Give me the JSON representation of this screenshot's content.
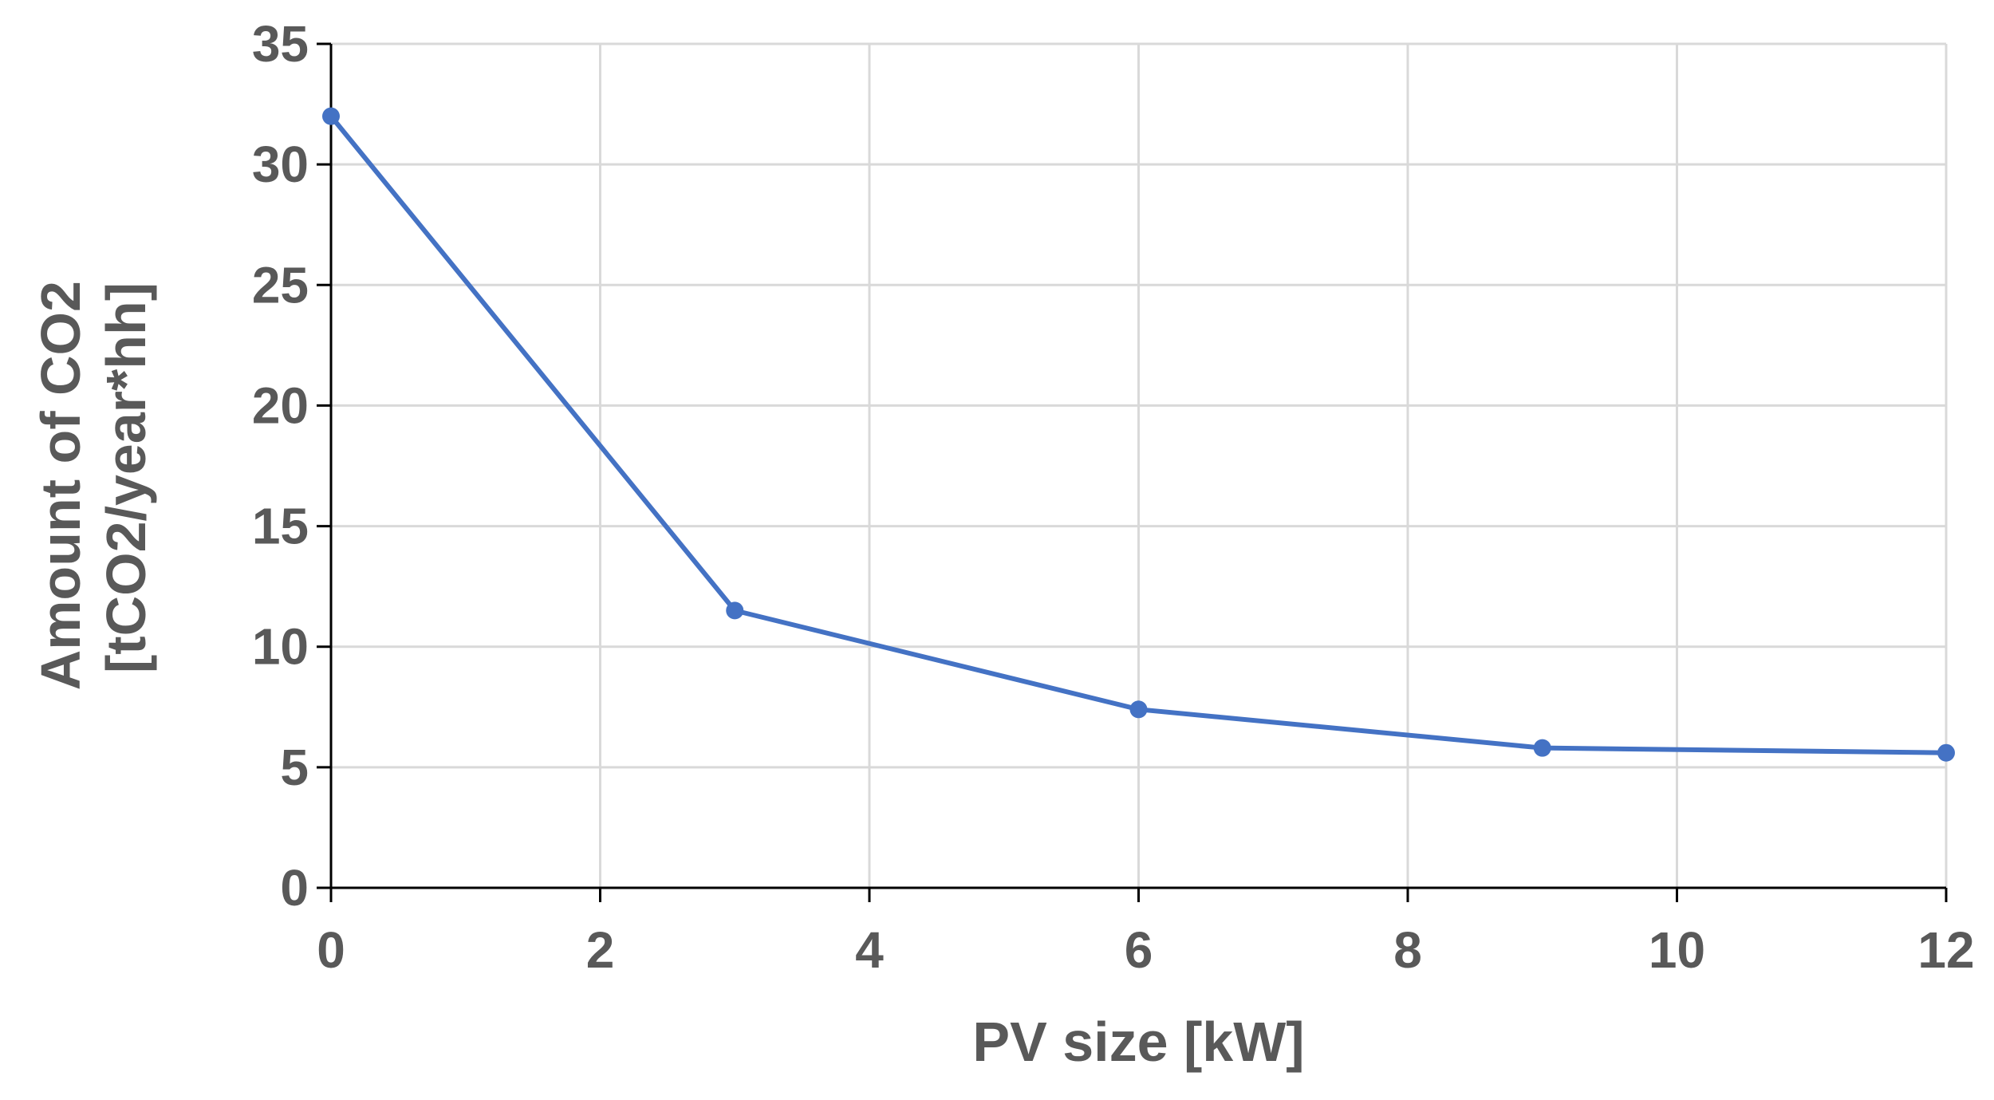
{
  "chart_data": {
    "type": "line",
    "title": "",
    "xlabel": "PV size [kW]",
    "ylabel_lines": [
      "Amount of CO2",
      "[tCO2/year*hh]"
    ],
    "xlim": [
      0,
      12
    ],
    "ylim": [
      0,
      35
    ],
    "x_ticks": [
      0,
      2,
      4,
      6,
      8,
      10,
      12
    ],
    "y_ticks": [
      0,
      5,
      10,
      15,
      20,
      25,
      30,
      35
    ],
    "grid": true,
    "legend": "none",
    "series": [
      {
        "color": "#4472C4",
        "x": [
          0,
          3,
          6,
          9,
          12
        ],
        "y": [
          32.0,
          11.5,
          7.4,
          5.8,
          5.6
        ]
      }
    ]
  }
}
